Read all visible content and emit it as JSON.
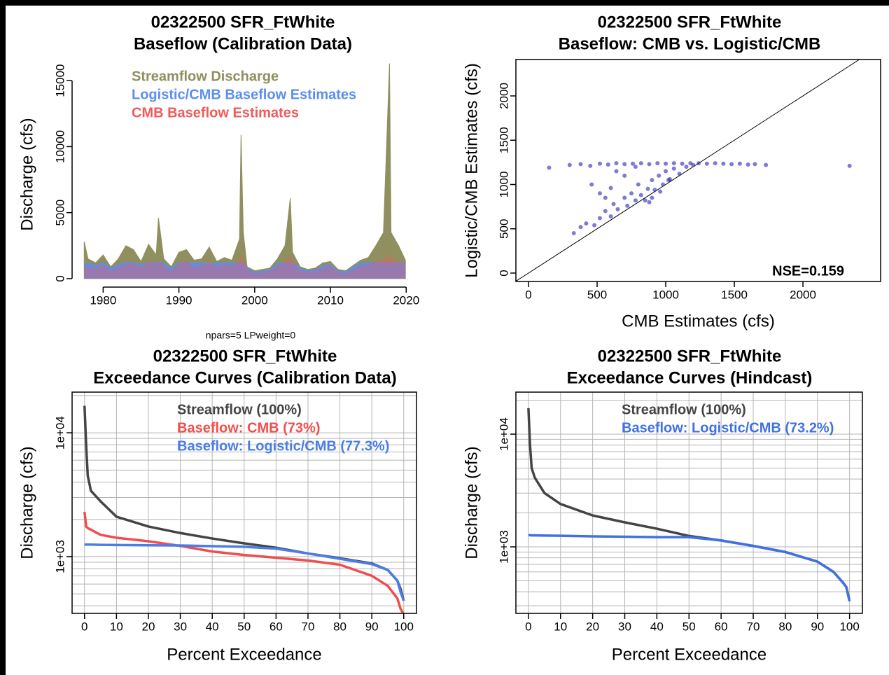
{
  "chart_data": [
    {
      "type": "area",
      "title": [
        "02322500 SFR_FtWhite",
        "Baseflow (Calibration Data)"
      ],
      "y_label": "Discharge (cfs)",
      "x": [
        1977.5,
        1978,
        1979,
        1980,
        1981,
        1982,
        1983,
        1984,
        1985,
        1986,
        1987,
        1987.3,
        1988,
        1989,
        1990,
        1991,
        1992,
        1993,
        1994,
        1995,
        1996,
        1997,
        1998,
        1998.2,
        1998.5,
        1999,
        2000,
        2001,
        2002,
        2003,
        2004,
        2004.7,
        2005,
        2006,
        2007,
        2008,
        2009,
        2010,
        2011,
        2012,
        2013,
        2014,
        2015,
        2016,
        2017,
        2017.8,
        2018,
        2019,
        2019.9
      ],
      "series": [
        {
          "name": "Streamflow Discharge",
          "color": "#8f8f5f",
          "values": [
            2800,
            1500,
            1200,
            1800,
            900,
            1500,
            2500,
            2200,
            1300,
            2600,
            1800,
            4600,
            1500,
            900,
            2000,
            2200,
            1400,
            1500,
            2400,
            1300,
            1600,
            1400,
            3000,
            10900,
            3500,
            900,
            600,
            700,
            800,
            1500,
            2500,
            6100,
            2000,
            900,
            700,
            800,
            1200,
            1300,
            700,
            600,
            1000,
            1400,
            1600,
            2500,
            3500,
            16300,
            3500,
            2500,
            1400
          ]
        },
        {
          "name": "Logistic/CMB Baseflow Estimates",
          "color": "#5b8ef0",
          "values": [
            1100,
            1200,
            1000,
            1250,
            800,
            1100,
            1250,
            1250,
            1100,
            1250,
            1250,
            1250,
            1200,
            800,
            1250,
            1250,
            1200,
            1200,
            1250,
            1150,
            1250,
            1200,
            1250,
            1250,
            1250,
            800,
            500,
            600,
            700,
            1200,
            1250,
            1250,
            1250,
            800,
            600,
            700,
            1000,
            1100,
            600,
            550,
            900,
            1200,
            1250,
            1250,
            1250,
            1250,
            1250,
            1250,
            1250
          ]
        },
        {
          "name": "CMB Baseflow Estimates",
          "color": "#f05a5a",
          "values": [
            1000,
            900,
            800,
            1100,
            600,
            900,
            1100,
            1200,
            900,
            1300,
            1100,
            1400,
            1000,
            600,
            1200,
            1300,
            900,
            1000,
            1300,
            900,
            1100,
            1000,
            1400,
            1900,
            1500,
            700,
            400,
            500,
            600,
            1000,
            1300,
            1700,
            1300,
            600,
            500,
            600,
            800,
            1000,
            500,
            400,
            700,
            1000,
            1100,
            1300,
            1400,
            1900,
            1500,
            1300,
            1200
          ]
        }
      ],
      "xlim": [
        1975.9,
        2020.9
      ],
      "xticks": [
        1980,
        1990,
        2000,
        2010,
        2020
      ],
      "ylim": [
        -640,
        16440
      ],
      "yticks": [
        0,
        5000,
        10000,
        15000
      ]
    },
    {
      "type": "scatter",
      "title": [
        "02322500 SFR_FtWhite",
        "Baseflow: CMB vs. Logistic/CMB"
      ],
      "x_label": "CMB Estimates (cfs)",
      "y_label": "Logistic/CMB Estimates (cfs)",
      "annotation": "NSE=0.159",
      "identity_line": true,
      "color": "#2525b8",
      "x": [
        150,
        300,
        380,
        450,
        520,
        580,
        640,
        700,
        760,
        820,
        880,
        940,
        1000,
        1060,
        1120,
        1180,
        1240,
        1300,
        1360,
        1420,
        1480,
        1540,
        1600,
        1650,
        1730,
        2340,
        330,
        380,
        420,
        480,
        520,
        560,
        600,
        620,
        650,
        700,
        720,
        750,
        780,
        800,
        820,
        850,
        870,
        900,
        920,
        950,
        980,
        1000,
        1030,
        1060,
        1100,
        1150,
        1200,
        900,
        960,
        1020,
        880,
        640,
        560,
        460,
        700,
        780,
        600,
        520
      ],
      "y": [
        1190,
        1220,
        1230,
        1210,
        1235,
        1225,
        1240,
        1230,
        1235,
        1240,
        1230,
        1240,
        1235,
        1240,
        1235,
        1240,
        1240,
        1235,
        1240,
        1235,
        1230,
        1235,
        1225,
        1230,
        1220,
        1210,
        450,
        520,
        560,
        540,
        620,
        700,
        640,
        780,
        720,
        850,
        760,
        900,
        820,
        1000,
        880,
        820,
        950,
        1050,
        940,
        1100,
        1000,
        1150,
        1060,
        1180,
        1120,
        1200,
        1220,
        850,
        920,
        1050,
        800,
        1150,
        850,
        1000,
        1100,
        1200,
        960,
        900
      ],
      "xlim": [
        -92,
        2566
      ],
      "xticks": [
        0,
        500,
        1000,
        1500,
        2000
      ],
      "ylim": [
        -95,
        2411
      ],
      "yticks": [
        0,
        500,
        1000,
        1500,
        2000
      ]
    },
    {
      "type": "line",
      "ylog": true,
      "grid": true,
      "subtitle": "npars=5 LPweight=0",
      "title": [
        "02322500 SFR_FtWhite",
        "Exceedance Curves (Calibration Data)"
      ],
      "x_label": "Percent Exceedance",
      "y_label": "Discharge (cfs)",
      "x": [
        0,
        0.5,
        1,
        2,
        5,
        10,
        20,
        30,
        40,
        50,
        60,
        70,
        80,
        90,
        95,
        98,
        99,
        100
      ],
      "series": [
        {
          "name": "Streamflow (100%)",
          "color": "#444444",
          "values": [
            16500,
            8000,
            4500,
            3400,
            2800,
            2100,
            1750,
            1550,
            1400,
            1280,
            1180,
            1060,
            970,
            880,
            780,
            640,
            550,
            440
          ]
        },
        {
          "name": "Baseflow: CMB (73%)",
          "color": "#f04e4e",
          "values": [
            2300,
            1750,
            1700,
            1650,
            1500,
            1420,
            1330,
            1220,
            1100,
            1030,
            980,
            930,
            860,
            700,
            580,
            460,
            380,
            340
          ]
        },
        {
          "name": "Baseflow: Logistic/CMB (77.3%)",
          "color": "#4a7de8",
          "values": [
            1250,
            1250,
            1250,
            1250,
            1245,
            1240,
            1235,
            1230,
            1215,
            1200,
            1160,
            1060,
            960,
            870,
            780,
            640,
            520,
            440
          ]
        }
      ],
      "xlim": [
        -3.9,
        104
      ],
      "xticks": [
        0,
        10,
        20,
        30,
        40,
        50,
        60,
        70,
        80,
        90,
        100
      ],
      "ylim": [
        348,
        21300
      ],
      "yticks": [
        {
          "value": 1000,
          "label": "1e+03"
        },
        {
          "value": 10000,
          "label": "1e+04"
        }
      ],
      "y_grid": [
        400,
        500,
        600,
        700,
        800,
        900,
        1000,
        2000,
        3000,
        4000,
        5000,
        6000,
        7000,
        8000,
        9000,
        10000,
        20000
      ]
    },
    {
      "type": "line",
      "ylog": true,
      "grid": true,
      "title": [
        "02322500 SFR_FtWhite",
        "Exceedance Curves (Hindcast)"
      ],
      "x_label": "Percent Exceedance",
      "y_label": "Discharge (cfs)",
      "x": [
        0,
        0.5,
        1,
        2,
        5,
        10,
        20,
        30,
        40,
        50,
        60,
        70,
        80,
        90,
        95,
        98,
        99,
        100
      ],
      "series": [
        {
          "name": "Streamflow (100%)",
          "color": "#444444",
          "values": [
            17000,
            8000,
            5000,
            4100,
            3000,
            2400,
            1900,
            1650,
            1450,
            1250,
            1140,
            1020,
            900,
            740,
            600,
            480,
            440,
            330
          ]
        },
        {
          "name": "Baseflow: Logistic/CMB (73.2%)",
          "color": "#3f72e0",
          "values": [
            1270,
            1270,
            1265,
            1265,
            1260,
            1255,
            1240,
            1230,
            1220,
            1220,
            1140,
            1020,
            900,
            740,
            600,
            480,
            440,
            330
          ]
        }
      ],
      "xlim": [
        -3.9,
        104
      ],
      "xticks": [
        0,
        10,
        20,
        30,
        40,
        50,
        60,
        70,
        80,
        90,
        100
      ],
      "ylim": [
        257,
        23600
      ],
      "yticks": [
        {
          "value": 1000,
          "label": "1e+03"
        },
        {
          "value": 10000,
          "label": "1e+04"
        }
      ],
      "y_grid": [
        300,
        400,
        500,
        600,
        700,
        800,
        900,
        1000,
        2000,
        3000,
        4000,
        5000,
        6000,
        7000,
        8000,
        9000,
        10000,
        20000
      ]
    }
  ]
}
